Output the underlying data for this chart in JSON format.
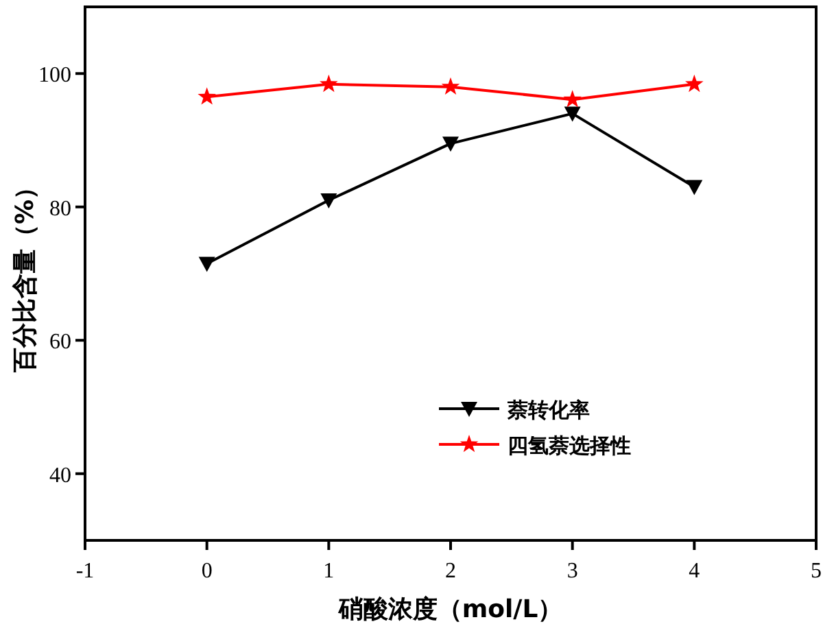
{
  "chart_data": {
    "type": "line",
    "xlabel": "硝酸浓度（mol/L）",
    "ylabel": "百分比含量（%）",
    "x": [
      0,
      1,
      2,
      3,
      4
    ],
    "series": [
      {
        "name": "萘转化率",
        "color": "#000000",
        "marker": "triangle",
        "values": [
          71.5,
          81,
          89.5,
          94,
          83
        ]
      },
      {
        "name": "四氢萘选择性",
        "color": "#ff0000",
        "marker": "star",
        "values": [
          96.5,
          98.4,
          98,
          96.1,
          98.4
        ]
      }
    ],
    "xlim": [
      -1,
      5
    ],
    "xticks": [
      -1,
      0,
      1,
      2,
      3,
      4,
      5
    ],
    "ylim": [
      30,
      110
    ],
    "yticks": [
      40,
      60,
      80,
      100
    ],
    "grid": false,
    "legend": "center",
    "line_style": "solid"
  }
}
